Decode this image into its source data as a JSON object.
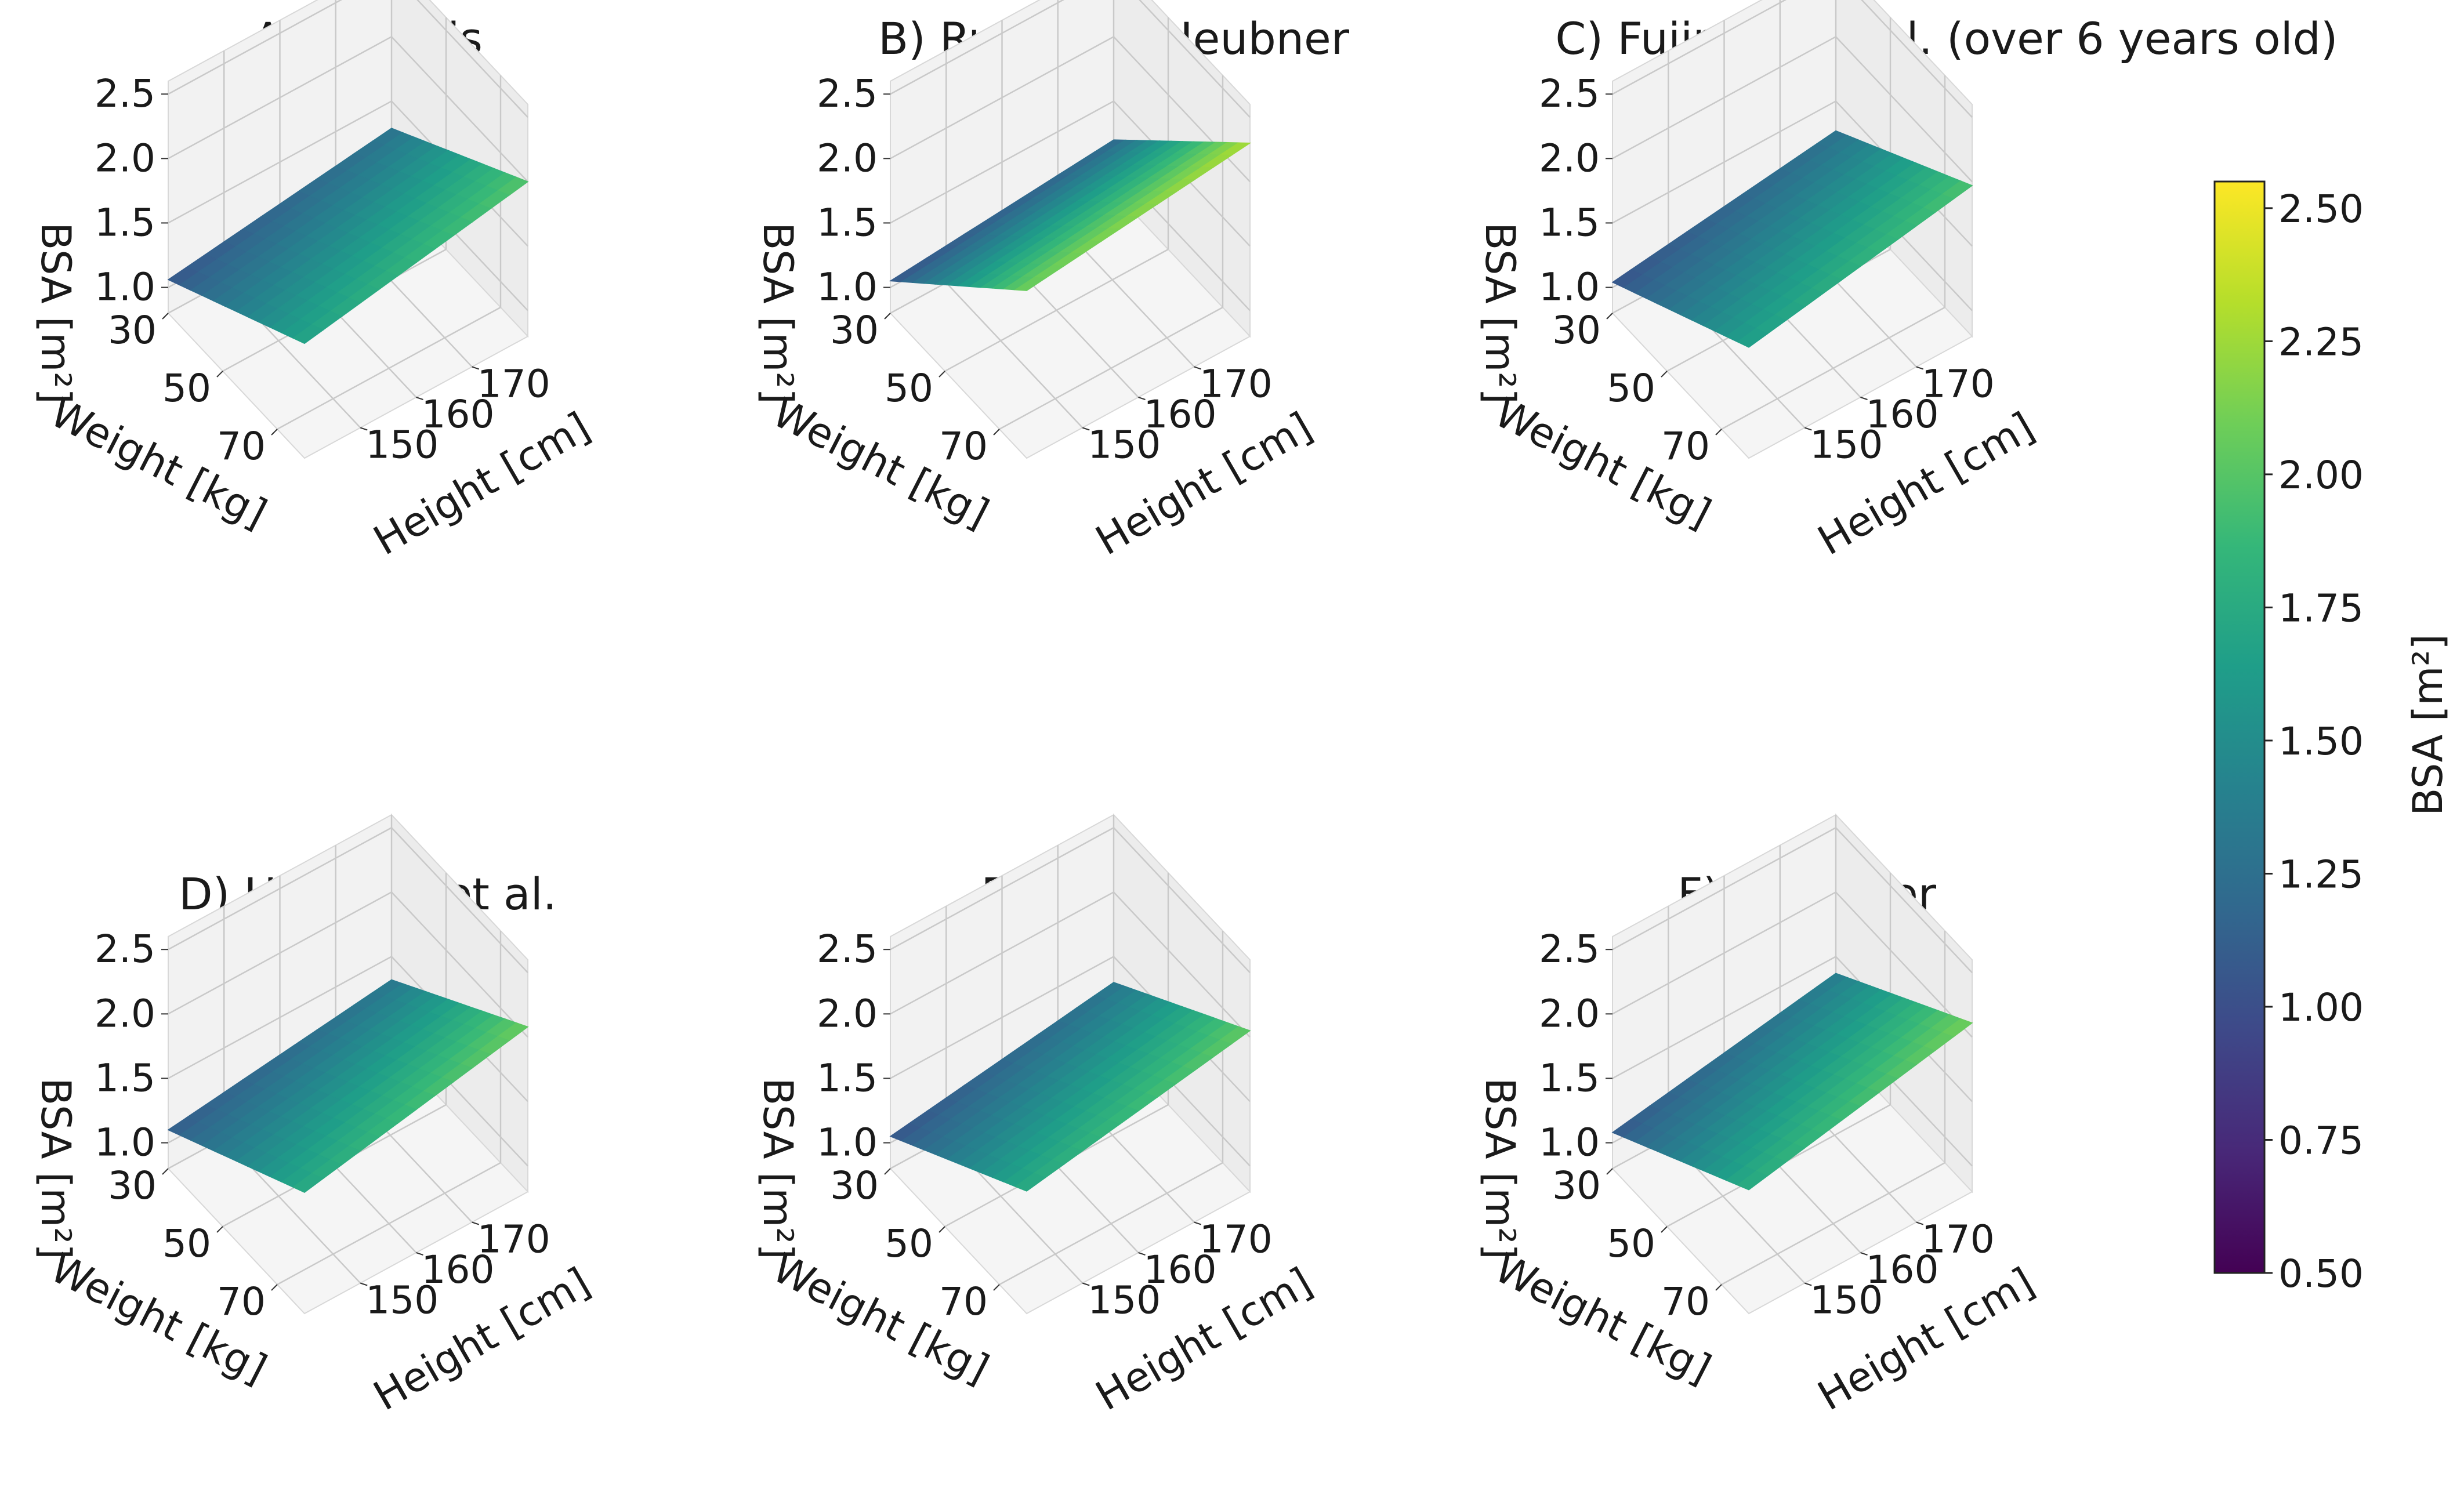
{
  "chart_data": [
    {
      "type": "surface",
      "title": "A) Du Bois",
      "xlabel": "Weight [kg]",
      "ylabel": "Height [cm]",
      "zlabel": "BSA [m²]",
      "x_ticks": [
        30,
        50,
        70
      ],
      "y_ticks": [
        150,
        160,
        170
      ],
      "z_ticks": [
        1.0,
        1.5,
        2.0,
        2.5
      ],
      "xlim": [
        30,
        80
      ],
      "ylim": [
        140,
        180
      ],
      "zlim": [
        0.8,
        2.6
      ],
      "corners": {
        "w30_h140": 1.06,
        "w80_h140": 1.69,
        "w30_h180": 1.29,
        "w80_h180": 2.0
      }
    },
    {
      "type": "surface",
      "title": "B) Rubner & Heubner",
      "xlabel": "Weight [kg]",
      "ylabel": "Height [cm]",
      "zlabel": "BSA [m²]",
      "x_ticks": [
        30,
        50,
        70
      ],
      "y_ticks": [
        150,
        160,
        170
      ],
      "z_ticks": [
        1.0,
        1.5,
        2.0,
        2.5
      ],
      "xlim": [
        30,
        80
      ],
      "ylim": [
        140,
        180
      ],
      "zlim": [
        0.8,
        2.6
      ],
      "corners": {
        "w30_h140": 1.05,
        "w80_h140": 2.1,
        "w30_h180": 1.2,
        "w80_h180": 2.3
      }
    },
    {
      "type": "surface",
      "title": "C) Fujimoto et al. (over 6 years old)",
      "xlabel": "Weight [kg]",
      "ylabel": "Height [cm]",
      "zlabel": "BSA [m²]",
      "x_ticks": [
        30,
        50,
        70
      ],
      "y_ticks": [
        150,
        160,
        170
      ],
      "z_ticks": [
        1.0,
        1.5,
        2.0,
        2.5
      ],
      "xlim": [
        30,
        80
      ],
      "ylim": [
        140,
        180
      ],
      "zlim": [
        0.8,
        2.6
      ],
      "corners": {
        "w30_h140": 1.04,
        "w80_h140": 1.66,
        "w30_h180": 1.27,
        "w80_h180": 1.97
      }
    },
    {
      "type": "surface",
      "title": "D) Haycock et al.",
      "xlabel": "Weight [kg]",
      "ylabel": "Height [cm]",
      "zlabel": "BSA [m²]",
      "x_ticks": [
        30,
        50,
        70
      ],
      "y_ticks": [
        150,
        160,
        170
      ],
      "z_ticks": [
        1.0,
        1.5,
        2.0,
        2.5
      ],
      "xlim": [
        30,
        80
      ],
      "ylim": [
        140,
        180
      ],
      "zlim": [
        0.8,
        2.6
      ],
      "corners": {
        "w30_h140": 1.1,
        "w80_h140": 1.74,
        "w30_h180": 1.32,
        "w80_h180": 2.08
      }
    },
    {
      "type": "surface",
      "title": "E) Meban",
      "xlabel": "Weight [kg]",
      "ylabel": "Height [cm]",
      "zlabel": "BSA [m²]",
      "x_ticks": [
        30,
        50,
        70
      ],
      "y_ticks": [
        150,
        160,
        170
      ],
      "z_ticks": [
        1.0,
        1.5,
        2.0,
        2.5
      ],
      "xlim": [
        30,
        80
      ],
      "ylim": [
        140,
        180
      ],
      "zlim": [
        0.8,
        2.6
      ],
      "corners": {
        "w30_h140": 1.05,
        "w80_h140": 1.75,
        "w30_h180": 1.3,
        "w80_h180": 2.05
      }
    },
    {
      "type": "surface",
      "title": "F) Mosteller",
      "xlabel": "Weight [kg]",
      "ylabel": "Height [cm]",
      "zlabel": "BSA [m²]",
      "x_ticks": [
        30,
        50,
        70
      ],
      "y_ticks": [
        150,
        160,
        170
      ],
      "z_ticks": [
        1.0,
        1.5,
        2.0,
        2.5
      ],
      "xlim": [
        30,
        80
      ],
      "ylim": [
        140,
        180
      ],
      "zlim": [
        0.8,
        2.6
      ],
      "corners": {
        "w30_h140": 1.08,
        "w80_h140": 1.76,
        "w30_h180": 1.37,
        "w80_h180": 2.11
      }
    }
  ],
  "colorbar": {
    "label": "BSA [m²]",
    "min": 0.5,
    "max": 2.55,
    "ticks": [
      "0.50",
      "0.75",
      "1.00",
      "1.25",
      "1.50",
      "1.75",
      "2.00",
      "2.25",
      "2.50"
    ],
    "colormap_stops": [
      "#440154",
      "#482878",
      "#3e4989",
      "#31688e",
      "#26828e",
      "#1f9e89",
      "#35b779",
      "#6ece58",
      "#b5de2b",
      "#fde725"
    ]
  }
}
